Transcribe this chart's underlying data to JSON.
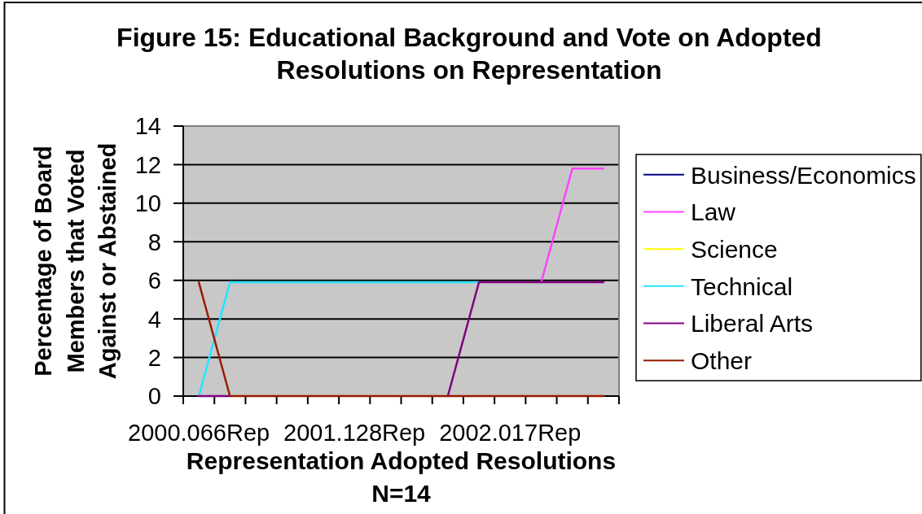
{
  "chart_data": {
    "type": "line",
    "title": "Figure 15: Educational Background and Vote on Adopted Resolutions on Representation",
    "xlabel": "Representation Adopted Resolutions N=14",
    "ylabel": "Percentage of Board Members that Voted Against or Abstained",
    "categories": [
      "2000.066Rep",
      null,
      null,
      null,
      null,
      "2001.128Rep",
      null,
      null,
      null,
      null,
      "2002.017Rep",
      null,
      null,
      null
    ],
    "series": [
      {
        "name": "Business/Economics",
        "color": "#000080",
        "values": [
          null,
          null,
          null,
          null,
          null,
          null,
          null,
          null,
          null,
          null,
          null,
          null,
          null,
          null
        ]
      },
      {
        "name": "Law",
        "color": "#ff44ff",
        "values": [
          null,
          null,
          null,
          null,
          null,
          null,
          null,
          null,
          null,
          null,
          null,
          5.9,
          11.8,
          11.8
        ]
      },
      {
        "name": "Science",
        "color": "#ffff00",
        "values": [
          null,
          null,
          null,
          null,
          null,
          null,
          null,
          null,
          null,
          null,
          null,
          null,
          null,
          null
        ]
      },
      {
        "name": "Technical",
        "color": "#22e5ff",
        "values": [
          0,
          5.9,
          5.9,
          5.9,
          5.9,
          5.9,
          5.9,
          5.9,
          5.9,
          5.9,
          null,
          null,
          null,
          null
        ]
      },
      {
        "name": "Liberal Arts",
        "color": "#800080",
        "values": [
          0,
          0,
          null,
          null,
          null,
          null,
          null,
          null,
          0,
          5.9,
          5.9,
          5.9,
          5.9,
          5.9
        ]
      },
      {
        "name": "Other",
        "color": "#991a00",
        "values": [
          5.9,
          0,
          0,
          0,
          0,
          0,
          0,
          0,
          0,
          0,
          0,
          0,
          0,
          0
        ]
      }
    ],
    "ylim": [
      0,
      14
    ],
    "yticks": [
      0,
      2,
      4,
      6,
      8,
      10,
      12,
      14
    ],
    "grid": "y",
    "legend": "right"
  }
}
